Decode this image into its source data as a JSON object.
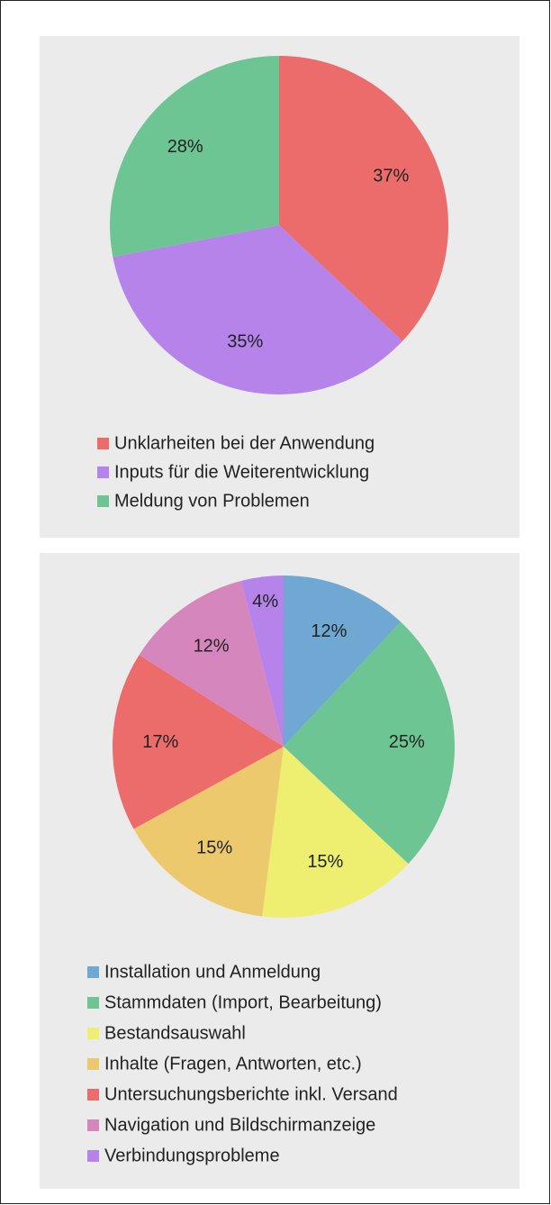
{
  "chart_data": [
    {
      "type": "pie",
      "categories": [
        "Unklarheiten bei der Anwendung",
        "Inputs für die Weiterentwicklung",
        "Meldung von Problemen"
      ],
      "values": [
        37,
        35,
        28
      ],
      "value_labels": [
        "37%",
        "35%",
        "28%"
      ],
      "colors": [
        "#ec6b6b",
        "#b583ea",
        "#6cc592"
      ]
    },
    {
      "type": "pie",
      "categories": [
        "Installation und Anmeldung",
        "Stammdaten (Import, Bearbeitung)",
        "Bestandsauswahl",
        "Inhalte (Fragen, Antworten, etc.)",
        "Untersuchungsberichte inkl. Versand",
        "Navigation und Bildschirmanzeige",
        "Verbindungsprobleme"
      ],
      "values": [
        12,
        25,
        15,
        15,
        17,
        12,
        4
      ],
      "value_labels": [
        "12%",
        "25%",
        "15%",
        "15%",
        "17%",
        "12%",
        "4%"
      ],
      "colors": [
        "#6fa8d2",
        "#6cc592",
        "#eeee70",
        "#ecc96d",
        "#ec6b6b",
        "#d586bd",
        "#b583ea"
      ]
    }
  ]
}
